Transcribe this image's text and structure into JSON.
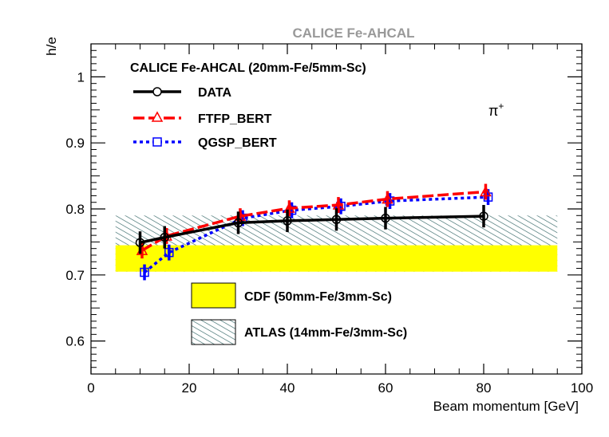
{
  "chart_data": {
    "type": "line",
    "title": "CALICE Fe-AHCAL",
    "subtitle": "CALICE Fe-AHCAL (20mm-Fe/5mm-Sc)",
    "particle_label": "π",
    "particle_charge": "+",
    "xlabel": "Beam momentum [GeV]",
    "ylabel": "h/e",
    "xlim": [
      0,
      100
    ],
    "ylim": [
      0.55,
      1.05
    ],
    "x_ticks": [
      0,
      20,
      40,
      60,
      80,
      100
    ],
    "x_tick_labels": [
      "0",
      "20",
      "40",
      "60",
      "80",
      "100"
    ],
    "y_ticks": [
      0.6,
      0.7,
      0.8,
      0.9,
      1.0
    ],
    "y_tick_labels": [
      "0.6",
      "0.7",
      "0.8",
      "0.9",
      "1"
    ],
    "grid": false,
    "legend_placement": "top-left",
    "series": [
      {
        "name": "DATA",
        "color": "#000000",
        "marker": "open-circle",
        "line_style": "solid",
        "x": [
          10,
          15,
          30,
          40,
          50,
          60,
          80
        ],
        "y": [
          0.749,
          0.757,
          0.779,
          0.782,
          0.784,
          0.786,
          0.789
        ],
        "err": [
          0.017,
          0.017,
          0.017,
          0.017,
          0.017,
          0.017,
          0.017
        ]
      },
      {
        "name": "FTFP_BERT",
        "color": "#ff0000",
        "marker": "open-triangle",
        "line_style": "dashed",
        "x": [
          10,
          15,
          30,
          40,
          50,
          60,
          80
        ],
        "y": [
          0.737,
          0.759,
          0.789,
          0.801,
          0.806,
          0.815,
          0.826
        ],
        "err": [
          0.012,
          0.012,
          0.012,
          0.012,
          0.012,
          0.012,
          0.012
        ]
      },
      {
        "name": "QGSP_BERT",
        "color": "#0000ff",
        "marker": "open-square",
        "line_style": "dotted",
        "x": [
          10,
          15,
          30,
          40,
          50,
          60,
          80
        ],
        "y": [
          0.704,
          0.734,
          0.786,
          0.798,
          0.804,
          0.812,
          0.818
        ],
        "err": [
          0.012,
          0.012,
          0.012,
          0.012,
          0.012,
          0.012,
          0.012
        ]
      }
    ],
    "bands": [
      {
        "name": "CDF (50mm-Fe/3mm-Sc)",
        "fill": "#ffff00",
        "x_range": [
          5,
          95
        ],
        "y_range": [
          0.705,
          0.745
        ]
      },
      {
        "name": "ATLAS (14mm-Fe/3mm-Sc)",
        "fill": "hatched-teal",
        "hatch_color": "#336666",
        "x_range": [
          5,
          95
        ],
        "y_range": [
          0.705,
          0.79
        ]
      }
    ]
  }
}
